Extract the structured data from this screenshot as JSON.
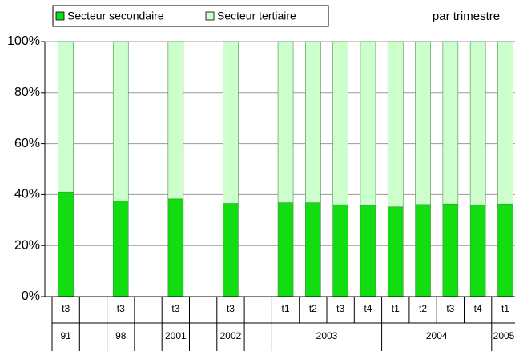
{
  "chart_data": {
    "type": "stacked_bar_100",
    "subtitle": "par trimestre",
    "categories": [
      "t3",
      null,
      "t3",
      null,
      "t3",
      null,
      "t3",
      null,
      "t1",
      "t2",
      "t3",
      "t4",
      "t1",
      "t2",
      "t3",
      "t4",
      "t1"
    ],
    "year_groups": [
      {
        "label": "91",
        "span": 1
      },
      {
        "label": null,
        "span": 1
      },
      {
        "label": "98",
        "span": 1
      },
      {
        "label": null,
        "span": 1
      },
      {
        "label": "2001",
        "span": 1
      },
      {
        "label": null,
        "span": 1
      },
      {
        "label": "2002",
        "span": 1
      },
      {
        "label": null,
        "span": 1
      },
      {
        "label": "2003",
        "span": 4
      },
      {
        "label": "2004",
        "span": 4
      },
      {
        "label": "2005",
        "span": 1
      }
    ],
    "series": [
      {
        "name": "Secteur secondaire",
        "color": "#11dd11",
        "values": [
          41,
          null,
          37.5,
          null,
          38.3,
          null,
          36.5,
          null,
          36.8,
          36.8,
          36,
          35.7,
          35.2,
          36.1,
          36.3,
          35.8,
          36.3
        ]
      },
      {
        "name": "Secteur tertiaire",
        "color": "#ccffcc",
        "values": [
          59,
          null,
          62.5,
          null,
          61.7,
          null,
          63.5,
          null,
          63.2,
          63.2,
          64,
          64.3,
          64.8,
          63.9,
          63.7,
          64.2,
          63.7
        ]
      }
    ],
    "ylim": [
      0,
      100
    ],
    "yticks": [
      {
        "value": 0,
        "label": "0%"
      },
      {
        "value": 20,
        "label": "20%"
      },
      {
        "value": 40,
        "label": "40%"
      },
      {
        "value": 60,
        "label": "60%"
      },
      {
        "value": 80,
        "label": "80%"
      },
      {
        "value": 100,
        "label": "100%"
      }
    ],
    "grid": true
  }
}
